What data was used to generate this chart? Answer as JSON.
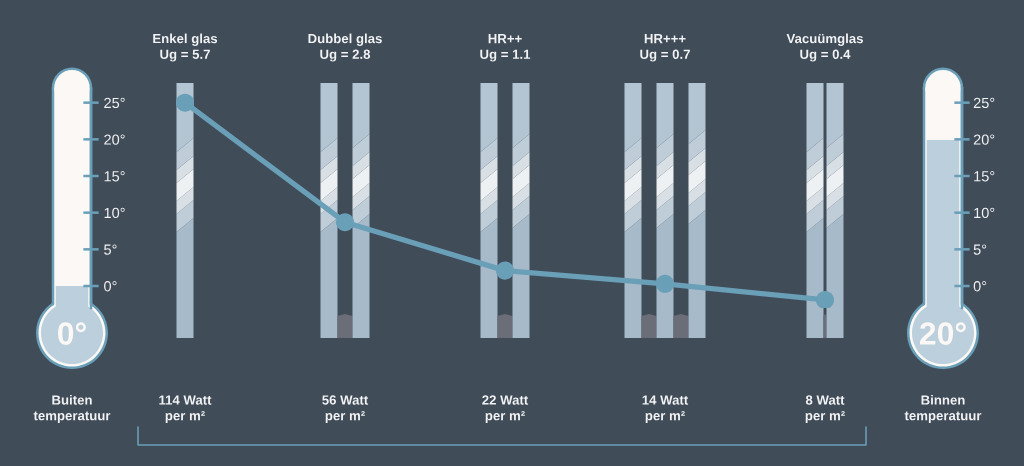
{
  "chart_data": {
    "type": "line",
    "categories": [
      "Enkel glas\nUg = 5.7",
      "Dubbel glas\nUg = 2.8",
      "HR++\nUg = 1.1",
      "HR+++\nUg = 0.7",
      "Vacuümglas\nUg = 0.4"
    ],
    "series": [
      {
        "color": "#6a9fb8",
        "values": [
          25,
          8.7,
          2.1,
          0.3,
          -1.9
        ]
      }
    ],
    "marker": "circle",
    "line_style": "solid",
    "ylim": [
      -3,
      27
    ],
    "yticks": [
      {
        "value": 0,
        "label": "0°"
      },
      {
        "value": 5,
        "label": "5°"
      },
      {
        "value": 10,
        "label": "10°"
      },
      {
        "value": 15,
        "label": "15°"
      },
      {
        "value": 20,
        "label": "20°"
      },
      {
        "value": 25,
        "label": "25°"
      }
    ],
    "y2lim": [
      -3,
      27
    ],
    "y2ticks": [
      {
        "value": 0,
        "label": "0°"
      },
      {
        "value": 5,
        "label": "5°"
      },
      {
        "value": 10,
        "label": "10°"
      },
      {
        "value": 15,
        "label": "15°"
      },
      {
        "value": 20,
        "label": "20°"
      },
      {
        "value": 25,
        "label": "25°"
      }
    ],
    "annotations": [
      "114 Watt\nper m²",
      "56 Watt\nper m²",
      "22 Watt\nper m²",
      "14 Watt\nper m²",
      "8 Watt\nper m²",
      "Buiten\ntemperatuur",
      "Binnen\ntemperatuur",
      "0°",
      "20°"
    ]
  }
}
